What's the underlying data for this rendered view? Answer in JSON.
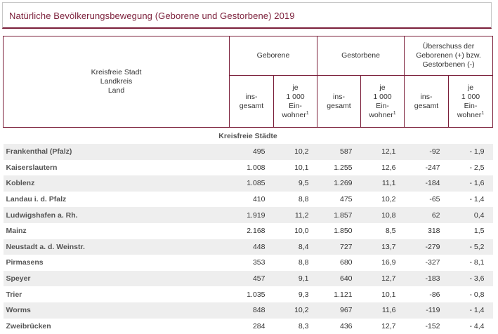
{
  "title": "Natürliche Bevölkerungsbewegung (Geborene und Gestorbene) 2019",
  "header": {
    "stub_line1": "Kreisfreie Stadt",
    "stub_line2": "Landkreis",
    "stub_line3": "Land",
    "geborene": "Geborene",
    "gestorbene": "Gestorbene",
    "ueberschuss_line1": "Überschuss der",
    "ueberschuss_line2": "Geborenen (+) bzw.",
    "ueberschuss_line3": "Gestorbenen (-)",
    "insg_line1": "ins-",
    "insg_line2": "gesamt",
    "je_line1": "je",
    "je_line2": "1 000",
    "je_line3": "Ein-",
    "je_line4": "wohner",
    "footnote": "1"
  },
  "section_label": "Kreisfreie Städte",
  "rows": [
    {
      "name": "Frankenthal (Pfalz)",
      "geb_ins": "495",
      "geb_je": "10,2",
      "gest_ins": "587",
      "gest_je": "12,1",
      "ue_ins": "-92",
      "ue_je": "- 1,9"
    },
    {
      "name": "Kaiserslautern",
      "geb_ins": "1.008",
      "geb_je": "10,1",
      "gest_ins": "1.255",
      "gest_je": "12,6",
      "ue_ins": "-247",
      "ue_je": "- 2,5"
    },
    {
      "name": "Koblenz",
      "geb_ins": "1.085",
      "geb_je": "9,5",
      "gest_ins": "1.269",
      "gest_je": "11,1",
      "ue_ins": "-184",
      "ue_je": "- 1,6"
    },
    {
      "name": "Landau i. d. Pfalz",
      "geb_ins": "410",
      "geb_je": "8,8",
      "gest_ins": "475",
      "gest_je": "10,2",
      "ue_ins": "-65",
      "ue_je": "- 1,4"
    },
    {
      "name": "Ludwigshafen a. Rh.",
      "geb_ins": "1.919",
      "geb_je": "11,2",
      "gest_ins": "1.857",
      "gest_je": "10,8",
      "ue_ins": "62",
      "ue_je": "0,4"
    },
    {
      "name": "Mainz",
      "geb_ins": "2.168",
      "geb_je": "10,0",
      "gest_ins": "1.850",
      "gest_je": "8,5",
      "ue_ins": "318",
      "ue_je": "1,5"
    },
    {
      "name": "Neustadt a. d. Weinstr.",
      "geb_ins": "448",
      "geb_je": "8,4",
      "gest_ins": "727",
      "gest_je": "13,7",
      "ue_ins": "-279",
      "ue_je": "- 5,2"
    },
    {
      "name": "Pirmasens",
      "geb_ins": "353",
      "geb_je": "8,8",
      "gest_ins": "680",
      "gest_je": "16,9",
      "ue_ins": "-327",
      "ue_je": "- 8,1"
    },
    {
      "name": "Speyer",
      "geb_ins": "457",
      "geb_je": "9,1",
      "gest_ins": "640",
      "gest_je": "12,7",
      "ue_ins": "-183",
      "ue_je": "- 3,6"
    },
    {
      "name": "Trier",
      "geb_ins": "1.035",
      "geb_je": "9,3",
      "gest_ins": "1.121",
      "gest_je": "10,1",
      "ue_ins": "-86",
      "ue_je": "- 0,8"
    },
    {
      "name": "Worms",
      "geb_ins": "848",
      "geb_je": "10,2",
      "gest_ins": "967",
      "gest_je": "11,6",
      "ue_ins": "-119",
      "ue_je": "- 1,4"
    },
    {
      "name": "Zweibrücken",
      "geb_ins": "284",
      "geb_je": "8,3",
      "gest_ins": "436",
      "gest_je": "12,7",
      "ue_ins": "-152",
      "ue_je": "- 4,4"
    }
  ]
}
